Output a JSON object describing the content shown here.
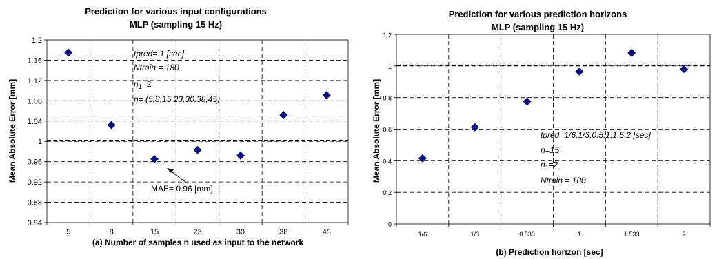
{
  "chart_data": [
    {
      "type": "scatter",
      "title": "Prediction for various input configurations",
      "subtitle": "MLP (sampling 15 Hz)",
      "xlabel": "(a) Number of samples n used as input to the network",
      "ylabel": "Mean Absolute Error [mm]",
      "categories": [
        "5",
        "8",
        "15",
        "23",
        "30",
        "38",
        "45"
      ],
      "values": [
        1.175,
        1.032,
        0.965,
        0.983,
        0.972,
        1.052,
        1.091
      ],
      "ylim": [
        0.84,
        1.2
      ],
      "yticks": [
        "0.84",
        "0.88",
        "0.92",
        "0.96",
        "1",
        "1.04",
        "1.08",
        "1.12",
        "1.16",
        "1.2"
      ],
      "reference_line": 1.002,
      "grid": true,
      "annotations": {
        "tpred": "tpred= 1 [sec]",
        "ntrain": "Ntrain = 180",
        "n1": "n",
        "n1_sub": "1",
        "n1_val": "=2",
        "n_list": "n= (5,8,15,23,30,38,45)",
        "mae": "MAE= 0.96 [mm]"
      }
    },
    {
      "type": "scatter",
      "title": "Prediction for various prediction horizons",
      "subtitle": "MLP (sampling 15 Hz)",
      "xlabel": "(b) Prediction horizon [sec]",
      "ylabel": "Mean Absolute Error [mm]",
      "categories": [
        "1/6",
        "1/3",
        "0.533",
        "1",
        "1.533",
        "2"
      ],
      "values": [
        0.415,
        0.612,
        0.775,
        0.965,
        1.083,
        0.98
      ],
      "ylim": [
        0,
        1.2
      ],
      "yticks": [
        "0",
        "0.2",
        "0.4",
        "0.6",
        "0.8",
        "1",
        "1.2"
      ],
      "reference_line": 1.005,
      "grid": true,
      "annotations": {
        "tpred": "tpred=1/6,1/3,0.5,1,1.5,2 [sec]",
        "n": "n=15",
        "n1": "n",
        "n1_sub": "1",
        "n1_val": "=2",
        "ntrain": "Ntrain = 180"
      }
    }
  ]
}
